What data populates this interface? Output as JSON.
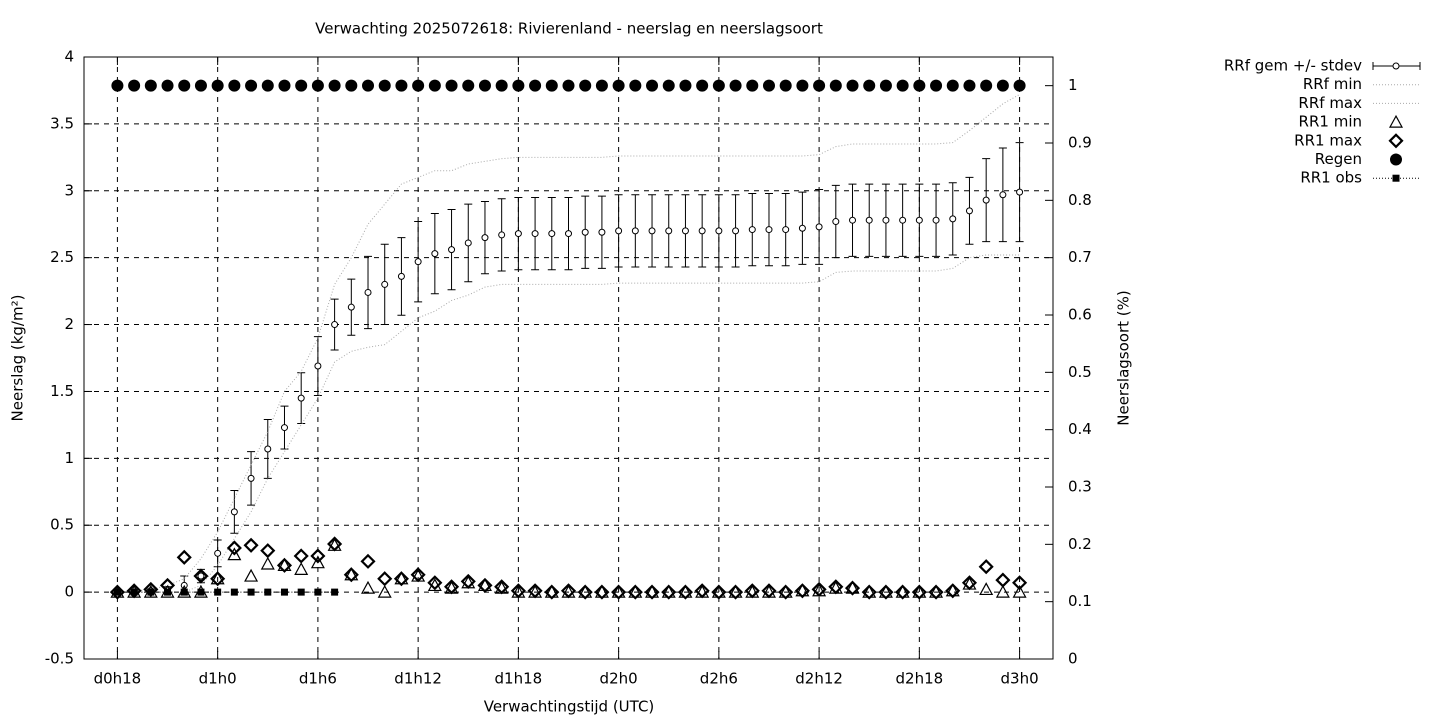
{
  "chart_data": {
    "type": "line",
    "title": "Verwachting 2025072618: Rivierenland - neerslag en neerslagsoort",
    "x_label": "Verwachtingstijd (UTC)",
    "y_label": "Neerslag (kg/m²)",
    "y2_label": "Neerslagsoort (%)",
    "x": [
      0,
      1,
      2,
      3,
      4,
      5,
      6,
      7,
      8,
      9,
      10,
      11,
      12,
      13,
      14,
      15,
      16,
      17,
      18,
      19,
      20,
      21,
      22,
      23,
      24,
      25,
      26,
      27,
      28,
      29,
      30,
      31,
      32,
      33,
      34,
      35,
      36,
      37,
      38,
      39,
      40,
      41,
      42,
      43,
      44,
      45,
      46,
      47,
      48,
      49,
      50,
      51,
      52,
      53,
      54
    ],
    "xlim": [
      -2,
      56
    ],
    "xticks": [
      {
        "value": 0,
        "label": "d0h18"
      },
      {
        "value": 6,
        "label": "d1h0"
      },
      {
        "value": 12,
        "label": "d1h6"
      },
      {
        "value": 18,
        "label": "d1h12"
      },
      {
        "value": 24,
        "label": "d1h18"
      },
      {
        "value": 30,
        "label": "d2h0"
      },
      {
        "value": 36,
        "label": "d2h6"
      },
      {
        "value": 42,
        "label": "d2h12"
      },
      {
        "value": 48,
        "label": "d2h18"
      },
      {
        "value": 54,
        "label": "d3h0"
      }
    ],
    "ylim": [
      -0.5,
      4
    ],
    "yticks": [
      -0.5,
      0,
      0.5,
      1,
      1.5,
      2,
      2.5,
      3,
      3.5,
      4
    ],
    "y2lim": [
      0,
      1.05
    ],
    "y2ticks": [
      0,
      0.1,
      0.2,
      0.3,
      0.4,
      0.5,
      0.6,
      0.7,
      0.8,
      0.9,
      1
    ],
    "grid": true,
    "legend": "right",
    "series": [
      {
        "name": "RRf gem +/- stdev",
        "color": "#000000",
        "style": "errorbar",
        "values": [
          0,
          0,
          0.01,
          0.02,
          0.05,
          0.12,
          0.29,
          0.6,
          0.85,
          1.07,
          1.23,
          1.45,
          1.69,
          2.0,
          2.13,
          2.24,
          2.3,
          2.36,
          2.47,
          2.53,
          2.56,
          2.61,
          2.65,
          2.67,
          2.68,
          2.68,
          2.68,
          2.68,
          2.69,
          2.69,
          2.7,
          2.7,
          2.7,
          2.7,
          2.7,
          2.7,
          2.7,
          2.7,
          2.71,
          2.71,
          2.71,
          2.72,
          2.73,
          2.77,
          2.78,
          2.78,
          2.78,
          2.78,
          2.78,
          2.78,
          2.79,
          2.85,
          2.93,
          2.97,
          2.99
        ],
        "errors": [
          0.01,
          0.01,
          0.01,
          0.02,
          0.07,
          0.05,
          0.1,
          0.16,
          0.2,
          0.22,
          0.16,
          0.19,
          0.22,
          0.19,
          0.21,
          0.27,
          0.3,
          0.29,
          0.3,
          0.3,
          0.3,
          0.29,
          0.27,
          0.27,
          0.27,
          0.27,
          0.27,
          0.27,
          0.27,
          0.27,
          0.27,
          0.27,
          0.27,
          0.27,
          0.27,
          0.27,
          0.27,
          0.27,
          0.27,
          0.27,
          0.27,
          0.27,
          0.28,
          0.27,
          0.27,
          0.27,
          0.27,
          0.27,
          0.27,
          0.27,
          0.27,
          0.25,
          0.31,
          0.35,
          0.37
        ]
      },
      {
        "name": "RRf min",
        "color": "#aaaaaa",
        "style": "dotted",
        "values": [
          0,
          0,
          0,
          0,
          0,
          0.05,
          0.2,
          0.4,
          0.6,
          0.85,
          1.05,
          1.25,
          1.45,
          1.72,
          1.8,
          1.83,
          1.85,
          1.95,
          2.05,
          2.1,
          2.18,
          2.22,
          2.28,
          2.3,
          2.3,
          2.3,
          2.3,
          2.3,
          2.3,
          2.3,
          2.31,
          2.31,
          2.31,
          2.31,
          2.31,
          2.31,
          2.31,
          2.31,
          2.31,
          2.31,
          2.31,
          2.31,
          2.32,
          2.39,
          2.4,
          2.4,
          2.4,
          2.4,
          2.4,
          2.4,
          2.42,
          2.5,
          2.52,
          2.52,
          2.52
        ]
      },
      {
        "name": "RRf max",
        "color": "#aaaaaa",
        "style": "dotted",
        "values": [
          0,
          0.01,
          0.02,
          0.05,
          0.1,
          0.25,
          0.45,
          0.7,
          0.95,
          1.2,
          1.5,
          1.65,
          1.9,
          2.3,
          2.5,
          2.75,
          2.9,
          3.05,
          3.1,
          3.15,
          3.15,
          3.2,
          3.22,
          3.24,
          3.25,
          3.25,
          3.25,
          3.25,
          3.25,
          3.25,
          3.26,
          3.26,
          3.26,
          3.26,
          3.26,
          3.26,
          3.26,
          3.26,
          3.26,
          3.26,
          3.26,
          3.26,
          3.27,
          3.33,
          3.35,
          3.35,
          3.35,
          3.35,
          3.35,
          3.35,
          3.36,
          3.45,
          3.55,
          3.65,
          3.72
        ]
      },
      {
        "name": "RR1 min",
        "color": "#000000",
        "style": "triangle",
        "values": [
          0,
          0,
          0,
          0,
          0,
          0,
          0.1,
          0.28,
          0.12,
          0.21,
          0.2,
          0.17,
          0.22,
          0.35,
          0.13,
          0.03,
          0,
          0.1,
          0.12,
          0.05,
          0.03,
          0.07,
          0.05,
          0.03,
          0,
          0,
          0,
          0,
          0,
          0,
          0,
          0,
          0,
          0,
          0,
          0,
          0,
          0,
          0,
          0,
          0,
          0.01,
          0.01,
          0.03,
          0.03,
          0,
          0,
          0,
          0,
          0,
          0.01,
          0.06,
          0.02,
          0,
          0
        ]
      },
      {
        "name": "RR1 max",
        "color": "#000000",
        "style": "diamond",
        "values": [
          0,
          0.01,
          0.02,
          0.05,
          0.26,
          0.12,
          0.1,
          0.33,
          0.35,
          0.31,
          0.2,
          0.27,
          0.27,
          0.36,
          0.13,
          0.23,
          0.1,
          0.1,
          0.13,
          0.07,
          0.04,
          0.08,
          0.05,
          0.04,
          0.01,
          0.01,
          0,
          0.01,
          0,
          0,
          0,
          0,
          0,
          0,
          0,
          0.01,
          0,
          0,
          0.01,
          0.01,
          0,
          0.01,
          0.02,
          0.04,
          0.03,
          0,
          0,
          0,
          0,
          0,
          0.01,
          0.07,
          0.19,
          0.09,
          0.07
        ]
      },
      {
        "name": "Regen",
        "color": "#000000",
        "style": "circle",
        "axis": "y2",
        "values": [
          1,
          1,
          1,
          1,
          1,
          1,
          1,
          1,
          1,
          1,
          1,
          1,
          1,
          1,
          1,
          1,
          1,
          1,
          1,
          1,
          1,
          1,
          1,
          1,
          1,
          1,
          1,
          1,
          1,
          1,
          1,
          1,
          1,
          1,
          1,
          1,
          1,
          1,
          1,
          1,
          1,
          1,
          1,
          1,
          1,
          1,
          1,
          1,
          1,
          1,
          1,
          1,
          1,
          1,
          1
        ]
      },
      {
        "name": "RR1 obs",
        "color": "#000000",
        "style": "square",
        "values": [
          0,
          0,
          0,
          0,
          0,
          0,
          0,
          0,
          0,
          0,
          0,
          0,
          0,
          0,
          null,
          null,
          null,
          null,
          null,
          null,
          null,
          null,
          null,
          null,
          null,
          null,
          null,
          null,
          null,
          null,
          null,
          null,
          null,
          null,
          null,
          null,
          null,
          null,
          null,
          null,
          null,
          null,
          null,
          null,
          null,
          null,
          null,
          null,
          null,
          null,
          null,
          null,
          null,
          null,
          null
        ]
      }
    ]
  }
}
